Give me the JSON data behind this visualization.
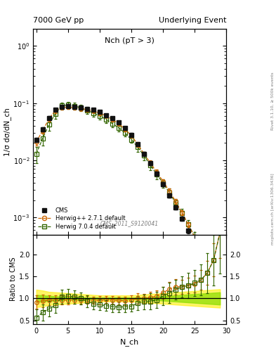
{
  "title_left": "7000 GeV pp",
  "title_right": "Underlying Event",
  "plot_label": "Nch (pT > 3)",
  "watermark": "CMS_2011_S9120041",
  "rivet_label": "Rivet 3.1.10, ≥ 500k events",
  "arxiv_label": "mcplots.cern.ch [arXiv:1306.3436]",
  "ylabel_main": "1/σ dσ/dN_ch",
  "ylabel_ratio": "Ratio to CMS",
  "xlabel": "N_ch",
  "xlim": [
    -0.5,
    30
  ],
  "ylim_main": [
    0.0005,
    2.0
  ],
  "ylim_ratio": [
    0.42,
    2.45
  ],
  "cms_x": [
    0,
    1,
    2,
    3,
    4,
    5,
    6,
    7,
    8,
    9,
    10,
    11,
    12,
    13,
    14,
    15,
    16,
    17,
    18,
    19,
    20,
    21,
    22,
    23,
    24,
    25,
    26,
    27,
    28,
    29
  ],
  "cms_y": [
    0.023,
    0.035,
    0.055,
    0.077,
    0.087,
    0.088,
    0.086,
    0.083,
    0.08,
    0.076,
    0.07,
    0.062,
    0.054,
    0.046,
    0.037,
    0.028,
    0.019,
    0.013,
    0.0088,
    0.0059,
    0.0038,
    0.0024,
    0.0015,
    0.00095,
    0.00058,
    0.00034,
    0.00019,
    9.5e-05,
    4e-05,
    1.2e-05
  ],
  "cms_yerr": [
    0.002,
    0.003,
    0.004,
    0.005,
    0.005,
    0.005,
    0.005,
    0.004,
    0.004,
    0.004,
    0.004,
    0.003,
    0.003,
    0.003,
    0.002,
    0.002,
    0.001,
    0.001,
    0.0007,
    0.0005,
    0.0003,
    0.0002,
    0.00013,
    8e-05,
    5e-05,
    3e-05,
    2e-05,
    1e-05,
    6e-06,
    2e-06
  ],
  "hpp_x": [
    0,
    1,
    2,
    3,
    4,
    5,
    6,
    7,
    8,
    9,
    10,
    11,
    12,
    13,
    14,
    15,
    16,
    17,
    18,
    19,
    20,
    21,
    22,
    23,
    24,
    25,
    26,
    27,
    28,
    29
  ],
  "hpp_y": [
    0.021,
    0.033,
    0.053,
    0.074,
    0.084,
    0.085,
    0.083,
    0.08,
    0.077,
    0.073,
    0.067,
    0.06,
    0.052,
    0.044,
    0.035,
    0.027,
    0.019,
    0.013,
    0.009,
    0.0062,
    0.0043,
    0.0029,
    0.0019,
    0.0012,
    0.00075,
    0.00045,
    0.00027,
    0.00015,
    7.5e-05,
    3e-05
  ],
  "hpp_yerr": [
    0.003,
    0.004,
    0.005,
    0.007,
    0.007,
    0.007,
    0.006,
    0.006,
    0.006,
    0.005,
    0.005,
    0.004,
    0.004,
    0.003,
    0.003,
    0.002,
    0.002,
    0.001,
    0.0009,
    0.0006,
    0.0004,
    0.0003,
    0.0002,
    0.00012,
    8e-05,
    5e-05,
    3e-05,
    2e-05,
    1e-05,
    5e-06
  ],
  "h704_x": [
    0,
    1,
    2,
    3,
    4,
    5,
    6,
    7,
    8,
    9,
    10,
    11,
    12,
    13,
    14,
    15,
    16,
    17,
    18,
    19,
    20,
    21,
    22,
    23,
    24,
    25,
    26,
    27,
    28,
    29
  ],
  "h704_y": [
    0.013,
    0.024,
    0.042,
    0.065,
    0.09,
    0.093,
    0.089,
    0.083,
    0.075,
    0.067,
    0.06,
    0.052,
    0.044,
    0.037,
    0.03,
    0.023,
    0.017,
    0.012,
    0.0082,
    0.0057,
    0.004,
    0.0027,
    0.0018,
    0.0012,
    0.00075,
    0.00046,
    0.00027,
    0.00015,
    7.5e-05,
    3e-05
  ],
  "h704_yerr": [
    0.004,
    0.006,
    0.009,
    0.012,
    0.013,
    0.013,
    0.012,
    0.011,
    0.01,
    0.009,
    0.008,
    0.007,
    0.006,
    0.005,
    0.004,
    0.003,
    0.003,
    0.002,
    0.0015,
    0.001,
    0.0007,
    0.0005,
    0.0003,
    0.0002,
    0.00015,
    9e-05,
    6e-05,
    4e-05,
    2e-05,
    1e-05
  ],
  "cms_color": "#111111",
  "hpp_color": "#cc6600",
  "h704_color": "#336600",
  "ratio_yticks": [
    0.5,
    1.0,
    1.5,
    2.0
  ],
  "band_inner_lo": [
    1.08,
    1.07,
    1.06,
    1.05,
    1.04,
    1.03,
    1.03,
    1.03,
    1.02,
    1.02,
    1.02,
    1.02,
    1.02,
    1.02,
    1.02,
    1.02,
    1.02,
    1.02,
    1.03,
    1.04,
    1.05,
    1.06,
    1.07,
    1.08,
    1.09,
    1.1,
    1.11,
    1.12,
    1.13,
    1.14
  ],
  "band_inner_hi": [
    0.92,
    0.93,
    0.94,
    0.95,
    0.96,
    0.97,
    0.97,
    0.97,
    0.98,
    0.98,
    0.98,
    0.98,
    0.98,
    0.98,
    0.98,
    0.98,
    0.98,
    0.98,
    0.97,
    0.96,
    0.95,
    0.94,
    0.93,
    0.92,
    0.91,
    0.9,
    0.89,
    0.88,
    0.87,
    0.86
  ],
  "band_outer_lo": [
    1.2,
    1.18,
    1.15,
    1.14,
    1.13,
    1.12,
    1.11,
    1.1,
    1.09,
    1.08,
    1.07,
    1.07,
    1.07,
    1.07,
    1.07,
    1.07,
    1.08,
    1.09,
    1.1,
    1.11,
    1.12,
    1.13,
    1.14,
    1.15,
    1.16,
    1.17,
    1.18,
    1.19,
    1.2,
    1.21
  ],
  "band_outer_hi": [
    0.8,
    0.82,
    0.85,
    0.86,
    0.87,
    0.88,
    0.89,
    0.9,
    0.91,
    0.92,
    0.93,
    0.93,
    0.93,
    0.93,
    0.93,
    0.93,
    0.92,
    0.91,
    0.9,
    0.89,
    0.88,
    0.87,
    0.86,
    0.85,
    0.84,
    0.83,
    0.82,
    0.81,
    0.8,
    0.79
  ]
}
